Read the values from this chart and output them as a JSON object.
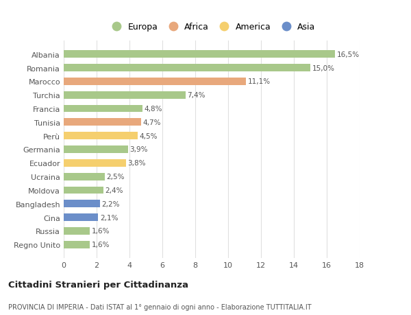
{
  "countries": [
    "Albania",
    "Romania",
    "Marocco",
    "Turchia",
    "Francia",
    "Tunisia",
    "Perù",
    "Germania",
    "Ecuador",
    "Ucraina",
    "Moldova",
    "Bangladesh",
    "Cina",
    "Russia",
    "Regno Unito"
  ],
  "values": [
    16.5,
    15.0,
    11.1,
    7.4,
    4.8,
    4.7,
    4.5,
    3.9,
    3.8,
    2.5,
    2.4,
    2.2,
    2.1,
    1.6,
    1.6
  ],
  "labels": [
    "16,5%",
    "15,0%",
    "11,1%",
    "7,4%",
    "4,8%",
    "4,7%",
    "4,5%",
    "3,9%",
    "3,8%",
    "2,5%",
    "2,4%",
    "2,2%",
    "2,1%",
    "1,6%",
    "1,6%"
  ],
  "categories": [
    "Europa",
    "Europa",
    "Africa",
    "Europa",
    "Europa",
    "Africa",
    "America",
    "Europa",
    "America",
    "Europa",
    "Europa",
    "Asia",
    "Asia",
    "Europa",
    "Europa"
  ],
  "colors": {
    "Europa": "#a8c88a",
    "Africa": "#e8a87c",
    "America": "#f5cf6e",
    "Asia": "#6b8ec9"
  },
  "legend_order": [
    "Europa",
    "Africa",
    "America",
    "Asia"
  ],
  "title": "Cittadini Stranieri per Cittadinanza",
  "subtitle": "PROVINCIA DI IMPERIA - Dati ISTAT al 1° gennaio di ogni anno - Elaborazione TUTTITALIA.IT",
  "xlim": [
    0,
    18
  ],
  "xticks": [
    0,
    2,
    4,
    6,
    8,
    10,
    12,
    14,
    16,
    18
  ],
  "background_color": "#ffffff",
  "grid_color": "#e0e0e0"
}
